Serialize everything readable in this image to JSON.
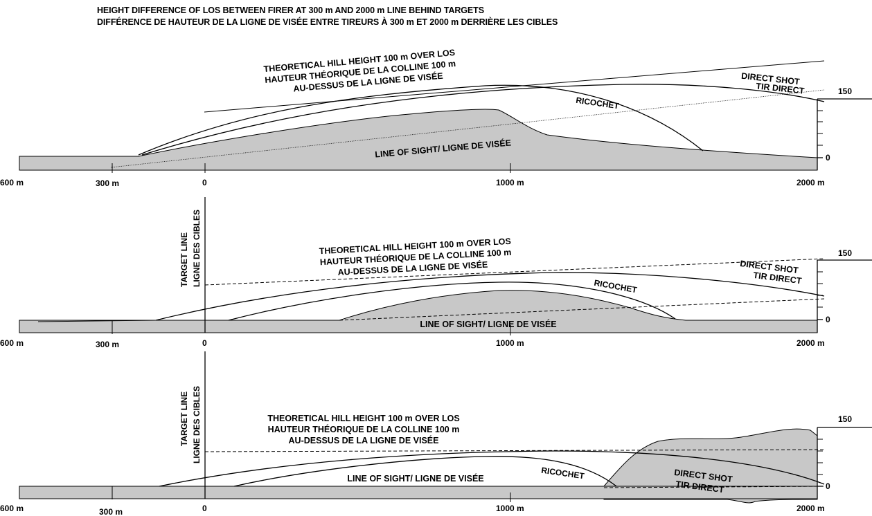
{
  "title": {
    "line1": "HEIGHT DIFFERENCE OF LOS BETWEEN FIRER AT 300 m AND 2000 m LINE BEHIND TARGETS",
    "line2": "DIFFÉRENCE DE HAUTEUR DE LA LIGNE DE VISÉE ENTRE TIREURS À 300 m ET 2000 m DERRIÈRE LES CIBLES"
  },
  "labels": {
    "hill_line1": "THEORETICAL HILL HEIGHT 100 m OVER LOS",
    "hill_line2": "HAUTEUR THÉORIQUE DE LA COLLINE 100 m",
    "hill_line3": "AU-DESSUS DE LA LIGNE DE VISÉE",
    "direct_line1": "DIRECT SHOT",
    "direct_line2": "TIR DIRECT",
    "ricochet": "RICOCHET",
    "los": "LINE OF SIGHT/ LIGNE DE VISÉE",
    "target_line1": "TARGET LINE",
    "target_line2": "LIGNE DES CIBLES"
  },
  "scale": {
    "top": "150",
    "bottom": "0"
  },
  "axis": {
    "panel1": [
      "600 m",
      "300 m",
      "0",
      "1000 m",
      "2000 m"
    ],
    "panel2": [
      "600 m",
      "300 m",
      "0",
      "1000 m",
      "2000 m"
    ],
    "panel3": [
      "600 m",
      "300 m",
      "0",
      "1000 m",
      "2000 m"
    ]
  },
  "colors": {
    "terrain": "#c8c8c8",
    "ink": "#000000"
  }
}
